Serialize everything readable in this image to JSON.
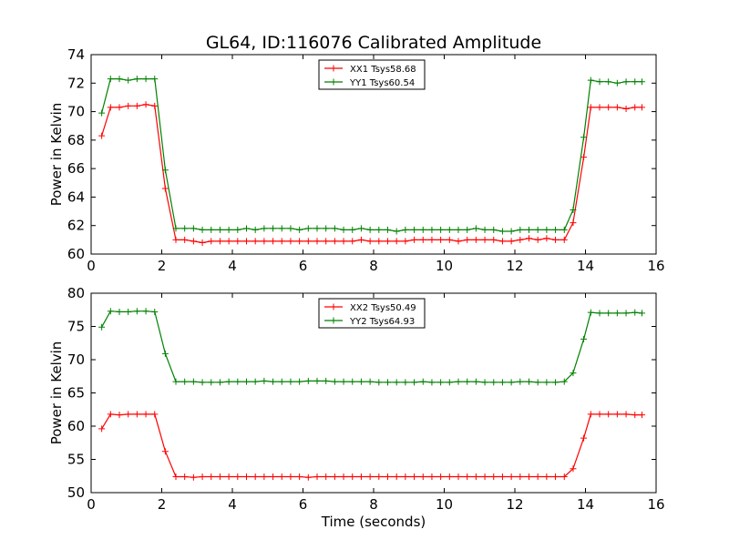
{
  "title": "GL64, ID:116076 Calibrated Amplitude",
  "chart_data": [
    {
      "type": "line",
      "xlabel": "",
      "ylabel": "Power in Kelvin",
      "xlim": [
        0,
        16
      ],
      "ylim": [
        60,
        74
      ],
      "xticks": [
        0,
        2,
        4,
        6,
        8,
        10,
        12,
        14,
        16
      ],
      "yticks": [
        60,
        62,
        64,
        66,
        68,
        70,
        72,
        74
      ],
      "legend_position": "top-center",
      "x": [
        0.3,
        0.55,
        0.8,
        1.05,
        1.3,
        1.55,
        1.8,
        2.1,
        2.4,
        2.65,
        2.9,
        3.15,
        3.4,
        3.65,
        3.9,
        4.15,
        4.4,
        4.65,
        4.9,
        5.15,
        5.4,
        5.65,
        5.9,
        6.15,
        6.4,
        6.65,
        6.9,
        7.15,
        7.4,
        7.65,
        7.9,
        8.15,
        8.4,
        8.65,
        8.9,
        9.15,
        9.4,
        9.65,
        9.9,
        10.15,
        10.4,
        10.65,
        10.9,
        11.15,
        11.4,
        11.65,
        11.9,
        12.15,
        12.4,
        12.65,
        12.9,
        13.15,
        13.4,
        13.65,
        13.95,
        14.15,
        14.4,
        14.65,
        14.9,
        15.15,
        15.4,
        15.6
      ],
      "series": [
        {
          "name": "XX1 Tsys58.68",
          "color": "#ff0000",
          "values": [
            68.3,
            70.3,
            70.3,
            70.4,
            70.4,
            70.5,
            70.4,
            64.6,
            61.0,
            61.0,
            60.9,
            60.8,
            60.9,
            60.9,
            60.9,
            60.9,
            60.9,
            60.9,
            60.9,
            60.9,
            60.9,
            60.9,
            60.9,
            60.9,
            60.9,
            60.9,
            60.9,
            60.9,
            60.9,
            61.0,
            60.9,
            60.9,
            60.9,
            60.9,
            60.9,
            61.0,
            61.0,
            61.0,
            61.0,
            61.0,
            60.9,
            61.0,
            61.0,
            61.0,
            61.0,
            60.9,
            60.9,
            61.0,
            61.1,
            61.0,
            61.1,
            61.0,
            61.0,
            62.2,
            66.8,
            70.3,
            70.3,
            70.3,
            70.3,
            70.2,
            70.3,
            70.3
          ]
        },
        {
          "name": "YY1 Tsys60.54",
          "color": "#008000",
          "values": [
            69.9,
            72.3,
            72.3,
            72.2,
            72.3,
            72.3,
            72.3,
            65.9,
            61.8,
            61.8,
            61.8,
            61.7,
            61.7,
            61.7,
            61.7,
            61.7,
            61.8,
            61.7,
            61.8,
            61.8,
            61.8,
            61.8,
            61.7,
            61.8,
            61.8,
            61.8,
            61.8,
            61.7,
            61.7,
            61.8,
            61.7,
            61.7,
            61.7,
            61.6,
            61.7,
            61.7,
            61.7,
            61.7,
            61.7,
            61.7,
            61.7,
            61.7,
            61.8,
            61.7,
            61.7,
            61.6,
            61.6,
            61.7,
            61.7,
            61.7,
            61.7,
            61.7,
            61.7,
            63.1,
            68.2,
            72.2,
            72.1,
            72.1,
            72.0,
            72.1,
            72.1,
            72.1
          ]
        }
      ]
    },
    {
      "type": "line",
      "xlabel": "Time (seconds)",
      "ylabel": "Power in Kelvin",
      "xlim": [
        0,
        16
      ],
      "ylim": [
        50,
        80
      ],
      "xticks": [
        0,
        2,
        4,
        6,
        8,
        10,
        12,
        14,
        16
      ],
      "yticks": [
        50,
        55,
        60,
        65,
        70,
        75,
        80
      ],
      "legend_position": "top-center",
      "x": [
        0.3,
        0.55,
        0.8,
        1.05,
        1.3,
        1.55,
        1.8,
        2.1,
        2.4,
        2.65,
        2.9,
        3.15,
        3.4,
        3.65,
        3.9,
        4.15,
        4.4,
        4.65,
        4.9,
        5.15,
        5.4,
        5.65,
        5.9,
        6.15,
        6.4,
        6.65,
        6.9,
        7.15,
        7.4,
        7.65,
        7.9,
        8.15,
        8.4,
        8.65,
        8.9,
        9.15,
        9.4,
        9.65,
        9.9,
        10.15,
        10.4,
        10.65,
        10.9,
        11.15,
        11.4,
        11.65,
        11.9,
        12.15,
        12.4,
        12.65,
        12.9,
        13.15,
        13.4,
        13.65,
        13.95,
        14.15,
        14.4,
        14.65,
        14.9,
        15.15,
        15.4,
        15.6
      ],
      "series": [
        {
          "name": "XX2 Tsys50.49",
          "color": "#ff0000",
          "values": [
            59.6,
            61.8,
            61.7,
            61.8,
            61.8,
            61.8,
            61.8,
            56.2,
            52.4,
            52.4,
            52.3,
            52.4,
            52.4,
            52.4,
            52.4,
            52.4,
            52.4,
            52.4,
            52.4,
            52.4,
            52.4,
            52.4,
            52.4,
            52.3,
            52.4,
            52.4,
            52.4,
            52.4,
            52.4,
            52.4,
            52.4,
            52.4,
            52.4,
            52.4,
            52.4,
            52.4,
            52.4,
            52.4,
            52.4,
            52.4,
            52.4,
            52.4,
            52.4,
            52.4,
            52.4,
            52.4,
            52.4,
            52.4,
            52.4,
            52.4,
            52.4,
            52.4,
            52.4,
            53.6,
            58.2,
            61.8,
            61.8,
            61.8,
            61.8,
            61.8,
            61.7,
            61.7
          ]
        },
        {
          "name": "YY2 Tsys64.93",
          "color": "#008000",
          "values": [
            74.9,
            77.3,
            77.2,
            77.2,
            77.3,
            77.3,
            77.2,
            70.9,
            66.7,
            66.7,
            66.7,
            66.6,
            66.6,
            66.6,
            66.7,
            66.7,
            66.7,
            66.7,
            66.8,
            66.7,
            66.7,
            66.7,
            66.7,
            66.8,
            66.8,
            66.8,
            66.7,
            66.7,
            66.7,
            66.7,
            66.7,
            66.6,
            66.6,
            66.6,
            66.6,
            66.6,
            66.7,
            66.6,
            66.6,
            66.6,
            66.7,
            66.7,
            66.7,
            66.6,
            66.6,
            66.6,
            66.6,
            66.7,
            66.7,
            66.6,
            66.6,
            66.6,
            66.7,
            68.0,
            73.1,
            77.1,
            77.0,
            77.0,
            77.0,
            77.0,
            77.1,
            77.0
          ]
        }
      ]
    }
  ]
}
